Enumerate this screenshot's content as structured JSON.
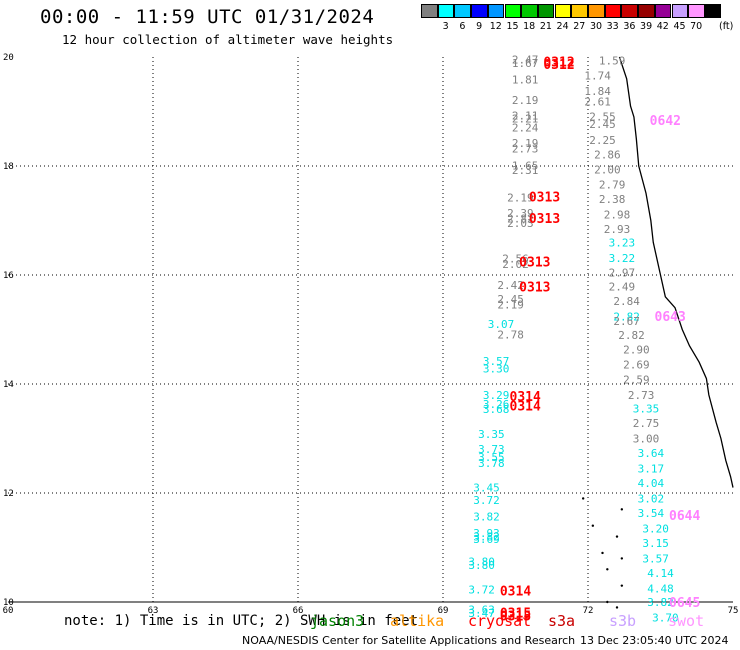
{
  "header": {
    "title": "00:00 - 11:59 UTC 01/31/2024",
    "subtitle": "12 hour collection of altimeter wave heights"
  },
  "legend": {
    "unit": "(ft)",
    "items": [
      {
        "label": "",
        "color": "#808080"
      },
      {
        "label": "3",
        "color": "#00ffff"
      },
      {
        "label": "6",
        "color": "#00c8ff"
      },
      {
        "label": "9",
        "color": "#0000ff"
      },
      {
        "label": "12",
        "color": "#0096ff"
      },
      {
        "label": "15",
        "color": "#00ff00"
      },
      {
        "label": "18",
        "color": "#00c800"
      },
      {
        "label": "21",
        "color": "#009600"
      },
      {
        "label": "24",
        "color": "#ffff00"
      },
      {
        "label": "27",
        "color": "#ffc800"
      },
      {
        "label": "30",
        "color": "#ff9600"
      },
      {
        "label": "33",
        "color": "#ff0000"
      },
      {
        "label": "36",
        "color": "#c80000"
      },
      {
        "label": "39",
        "color": "#960000"
      },
      {
        "label": "42",
        "color": "#960096"
      },
      {
        "label": "45",
        "color": "#c8a0ff"
      },
      {
        "label": "70",
        "color": "#ff96ff"
      },
      {
        "label": "",
        "color": "#000000"
      }
    ]
  },
  "map": {
    "lon_min": 60,
    "lon_max": 75,
    "lat_min": 10,
    "lat_max": 20,
    "x_ticks": [
      "60",
      "63",
      "66",
      "69",
      "72",
      "75"
    ],
    "y_ticks": [
      "10",
      "12",
      "14",
      "16",
      "18",
      "20"
    ],
    "grid": "dotted",
    "colors": {
      "jason": "#808080",
      "cryosat": "#00e0e0",
      "time": "#ff0000",
      "swot": "#ff80ff"
    },
    "observations": [
      {
        "lon": 70.7,
        "lat": 19.95,
        "t": "2.47",
        "c": "jason"
      },
      {
        "lon": 70.7,
        "lat": 19.89,
        "t": "1.67",
        "c": "jason"
      },
      {
        "lon": 70.7,
        "lat": 19.59,
        "t": "1.81",
        "c": "jason"
      },
      {
        "lon": 70.7,
        "lat": 19.21,
        "t": "2.19",
        "c": "jason"
      },
      {
        "lon": 70.7,
        "lat": 18.93,
        "t": "2.11",
        "c": "jason"
      },
      {
        "lon": 70.7,
        "lat": 18.87,
        "t": "2.21",
        "c": "jason"
      },
      {
        "lon": 70.7,
        "lat": 18.71,
        "t": "2.24",
        "c": "jason"
      },
      {
        "lon": 70.7,
        "lat": 18.42,
        "t": "2.19",
        "c": "jason"
      },
      {
        "lon": 70.7,
        "lat": 18.32,
        "t": "2.73",
        "c": "jason"
      },
      {
        "lon": 70.7,
        "lat": 18.01,
        "t": "1.65",
        "c": "jason"
      },
      {
        "lon": 70.7,
        "lat": 17.93,
        "t": "2.31",
        "c": "jason"
      },
      {
        "lon": 70.6,
        "lat": 17.42,
        "t": "2.19",
        "c": "jason"
      },
      {
        "lon": 70.6,
        "lat": 17.14,
        "t": "2.39",
        "c": "jason"
      },
      {
        "lon": 70.6,
        "lat": 17.04,
        "t": "2.82",
        "c": "jason"
      },
      {
        "lon": 70.6,
        "lat": 16.95,
        "t": "2.03",
        "c": "jason"
      },
      {
        "lon": 70.5,
        "lat": 16.3,
        "t": "2.56",
        "c": "jason"
      },
      {
        "lon": 70.5,
        "lat": 16.2,
        "t": "2.02",
        "c": "jason"
      },
      {
        "lon": 70.4,
        "lat": 15.82,
        "t": "2.42",
        "c": "jason"
      },
      {
        "lon": 70.4,
        "lat": 15.56,
        "t": "2.45",
        "c": "jason"
      },
      {
        "lon": 70.4,
        "lat": 15.46,
        "t": "2.19",
        "c": "jason"
      },
      {
        "lon": 70.2,
        "lat": 15.1,
        "t": "3.07",
        "c": "cryosat"
      },
      {
        "lon": 70.4,
        "lat": 14.91,
        "t": "2.78",
        "c": "jason"
      },
      {
        "lon": 70.1,
        "lat": 14.42,
        "t": "3.57",
        "c": "cryosat"
      },
      {
        "lon": 70.1,
        "lat": 14.28,
        "t": "3.30",
        "c": "cryosat"
      },
      {
        "lon": 70.1,
        "lat": 13.8,
        "t": "3.29",
        "c": "cryosat"
      },
      {
        "lon": 70.1,
        "lat": 13.63,
        "t": "3.26",
        "c": "cryosat"
      },
      {
        "lon": 70.1,
        "lat": 13.54,
        "t": "3.68",
        "c": "cryosat"
      },
      {
        "lon": 70.0,
        "lat": 13.08,
        "t": "3.35",
        "c": "cryosat"
      },
      {
        "lon": 70.0,
        "lat": 12.81,
        "t": "3.73",
        "c": "cryosat"
      },
      {
        "lon": 70.0,
        "lat": 12.66,
        "t": "3.55",
        "c": "cryosat"
      },
      {
        "lon": 70.0,
        "lat": 12.55,
        "t": "3.78",
        "c": "cryosat"
      },
      {
        "lon": 69.9,
        "lat": 12.1,
        "t": "3.45",
        "c": "cryosat"
      },
      {
        "lon": 69.9,
        "lat": 11.87,
        "t": "3.72",
        "c": "cryosat"
      },
      {
        "lon": 69.9,
        "lat": 11.57,
        "t": "3.82",
        "c": "cryosat"
      },
      {
        "lon": 69.9,
        "lat": 11.27,
        "t": "3.93",
        "c": "cryosat"
      },
      {
        "lon": 69.9,
        "lat": 11.2,
        "t": "3.82",
        "c": "cryosat"
      },
      {
        "lon": 69.9,
        "lat": 11.16,
        "t": "3.69",
        "c": "cryosat"
      },
      {
        "lon": 69.8,
        "lat": 10.74,
        "t": "3.80",
        "c": "cryosat"
      },
      {
        "lon": 69.8,
        "lat": 10.68,
        "t": "3.80",
        "c": "cryosat"
      },
      {
        "lon": 69.8,
        "lat": 10.23,
        "t": "3.72",
        "c": "cryosat"
      },
      {
        "lon": 69.8,
        "lat": 9.86,
        "t": "3.63",
        "c": "cryosat"
      },
      {
        "lon": 69.8,
        "lat": 9.8,
        "t": "3.47",
        "c": "cryosat"
      },
      {
        "lon": 72.5,
        "lat": 19.94,
        "t": "1.59",
        "c": "jason"
      },
      {
        "lon": 72.2,
        "lat": 19.66,
        "t": "1.74",
        "c": "jason"
      },
      {
        "lon": 72.2,
        "lat": 19.38,
        "t": "1.84",
        "c": "jason"
      },
      {
        "lon": 72.2,
        "lat": 19.18,
        "t": "2.61",
        "c": "jason"
      },
      {
        "lon": 72.3,
        "lat": 18.91,
        "t": "2.55",
        "c": "jason"
      },
      {
        "lon": 72.3,
        "lat": 18.77,
        "t": "2.45",
        "c": "jason"
      },
      {
        "lon": 72.3,
        "lat": 18.48,
        "t": "2.25",
        "c": "jason"
      },
      {
        "lon": 72.4,
        "lat": 18.21,
        "t": "2.86",
        "c": "jason"
      },
      {
        "lon": 72.4,
        "lat": 17.94,
        "t": "2.00",
        "c": "jason"
      },
      {
        "lon": 72.5,
        "lat": 17.66,
        "t": "2.79",
        "c": "jason"
      },
      {
        "lon": 72.5,
        "lat": 17.39,
        "t": "2.38",
        "c": "jason"
      },
      {
        "lon": 72.6,
        "lat": 17.11,
        "t": "2.98",
        "c": "jason"
      },
      {
        "lon": 72.6,
        "lat": 16.84,
        "t": "2.93",
        "c": "jason"
      },
      {
        "lon": 72.7,
        "lat": 16.6,
        "t": "3.23",
        "c": "cryosat"
      },
      {
        "lon": 72.7,
        "lat": 16.31,
        "t": "3.22",
        "c": "cryosat"
      },
      {
        "lon": 72.7,
        "lat": 16.05,
        "t": "2.97",
        "c": "jason"
      },
      {
        "lon": 72.7,
        "lat": 15.79,
        "t": "2.49",
        "c": "jason"
      },
      {
        "lon": 72.8,
        "lat": 15.52,
        "t": "2.84",
        "c": "jason"
      },
      {
        "lon": 72.8,
        "lat": 15.24,
        "t": "2.82",
        "c": "cryosat"
      },
      {
        "lon": 72.8,
        "lat": 15.16,
        "t": "2.67",
        "c": "jason"
      },
      {
        "lon": 72.9,
        "lat": 14.9,
        "t": "2.82",
        "c": "jason"
      },
      {
        "lon": 73.0,
        "lat": 14.63,
        "t": "2.90",
        "c": "jason"
      },
      {
        "lon": 73.0,
        "lat": 14.36,
        "t": "2.69",
        "c": "jason"
      },
      {
        "lon": 73.0,
        "lat": 14.08,
        "t": "2.59",
        "c": "jason"
      },
      {
        "lon": 73.1,
        "lat": 13.8,
        "t": "2.73",
        "c": "jason"
      },
      {
        "lon": 73.2,
        "lat": 13.55,
        "t": "3.35",
        "c": "cryosat"
      },
      {
        "lon": 73.2,
        "lat": 13.28,
        "t": "2.75",
        "c": "jason"
      },
      {
        "lon": 73.2,
        "lat": 13.0,
        "t": "3.00",
        "c": "jason"
      },
      {
        "lon": 73.3,
        "lat": 12.73,
        "t": "3.64",
        "c": "cryosat"
      },
      {
        "lon": 73.3,
        "lat": 12.45,
        "t": "3.17",
        "c": "cryosat"
      },
      {
        "lon": 73.3,
        "lat": 12.18,
        "t": "4.04",
        "c": "cryosat"
      },
      {
        "lon": 73.3,
        "lat": 11.9,
        "t": "3.02",
        "c": "cryosat"
      },
      {
        "lon": 73.3,
        "lat": 11.63,
        "t": "3.54",
        "c": "cryosat"
      },
      {
        "lon": 73.4,
        "lat": 11.35,
        "t": "3.20",
        "c": "cryosat"
      },
      {
        "lon": 73.4,
        "lat": 11.08,
        "t": "3.15",
        "c": "cryosat"
      },
      {
        "lon": 73.4,
        "lat": 10.8,
        "t": "3.57",
        "c": "cryosat"
      },
      {
        "lon": 73.5,
        "lat": 10.53,
        "t": "4.14",
        "c": "cryosat"
      },
      {
        "lon": 73.5,
        "lat": 10.25,
        "t": "4.48",
        "c": "cryosat"
      },
      {
        "lon": 73.5,
        "lat": 10.0,
        "t": "3.82",
        "c": "cryosat"
      },
      {
        "lon": 73.6,
        "lat": 9.72,
        "t": "3.70",
        "c": "cryosat"
      }
    ],
    "time_labels": [
      {
        "lon": 71.4,
        "lat": 19.92,
        "t": "0312",
        "c": "time"
      },
      {
        "lon": 71.4,
        "lat": 19.87,
        "t": "0312",
        "c": "time"
      },
      {
        "lon": 71.1,
        "lat": 17.44,
        "t": "0313",
        "c": "time"
      },
      {
        "lon": 71.1,
        "lat": 17.05,
        "t": "0313",
        "c": "time"
      },
      {
        "lon": 70.9,
        "lat": 16.25,
        "t": "0313",
        "c": "time"
      },
      {
        "lon": 70.9,
        "lat": 15.79,
        "t": "0313",
        "c": "time"
      },
      {
        "lon": 70.7,
        "lat": 13.78,
        "t": "0314",
        "c": "time"
      },
      {
        "lon": 70.7,
        "lat": 13.61,
        "t": "0314",
        "c": "time"
      },
      {
        "lon": 70.5,
        "lat": 10.21,
        "t": "0314",
        "c": "time"
      },
      {
        "lon": 70.5,
        "lat": 9.81,
        "t": "0315",
        "c": "time"
      },
      {
        "lon": 70.5,
        "lat": 9.75,
        "t": "0315",
        "c": "time"
      },
      {
        "lon": 73.6,
        "lat": 18.84,
        "t": "0642",
        "c": "swot"
      },
      {
        "lon": 73.7,
        "lat": 15.25,
        "t": "0643",
        "c": "swot"
      },
      {
        "lon": 74.0,
        "lat": 11.6,
        "t": "0644",
        "c": "swot"
      },
      {
        "lon": 74.0,
        "lat": 10.0,
        "t": "0645",
        "c": "swot"
      }
    ]
  },
  "note": {
    "text": "note: 1) Time is in UTC; 2) SWH is in feet",
    "satellites": [
      {
        "name": "jason3",
        "color": "#008000"
      },
      {
        "name": "altika",
        "color": "#ff9600"
      },
      {
        "name": "cryosat",
        "color": "#ff0000"
      },
      {
        "name": "s3a",
        "color": "#c80000"
      },
      {
        "name": "s3b",
        "color": "#c8a0ff"
      },
      {
        "name": "swot",
        "color": "#ff96ff"
      }
    ]
  },
  "footer": {
    "credit": "NOAA/NESDIS Center for Satellite Applications and Research",
    "timestamp": "13 Dec 23:05:40 UTC 2024"
  }
}
